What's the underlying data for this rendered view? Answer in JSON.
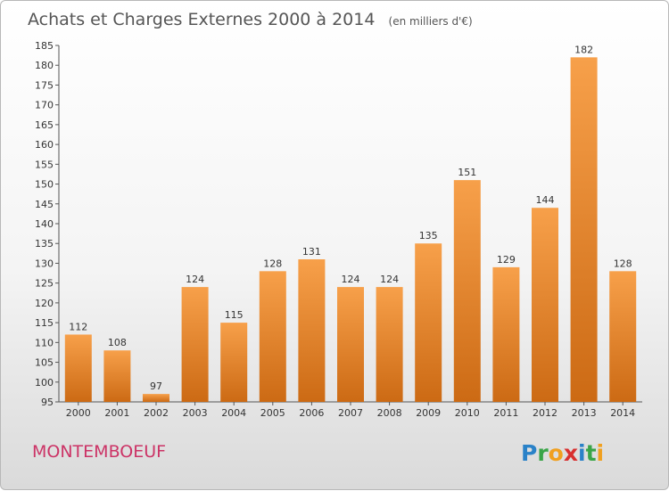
{
  "chart_data": {
    "type": "bar",
    "title": "Achats et Charges Externes 2000 à 2014",
    "subtitle": "(en milliers d'€)",
    "xlabel": "",
    "ylabel": "",
    "categories": [
      "2000",
      "2001",
      "2002",
      "2003",
      "2004",
      "2005",
      "2006",
      "2007",
      "2008",
      "2009",
      "2010",
      "2011",
      "2012",
      "2013",
      "2014"
    ],
    "values": [
      112,
      108,
      97,
      124,
      115,
      128,
      131,
      124,
      124,
      135,
      151,
      129,
      144,
      182,
      128
    ],
    "ylim": [
      95,
      185
    ],
    "ytick_step": 5,
    "grid": false,
    "bar_color": "#f0963c"
  },
  "footer": {
    "place_name": "MONTEMBOEUF",
    "logo_text": "Proxiti"
  }
}
